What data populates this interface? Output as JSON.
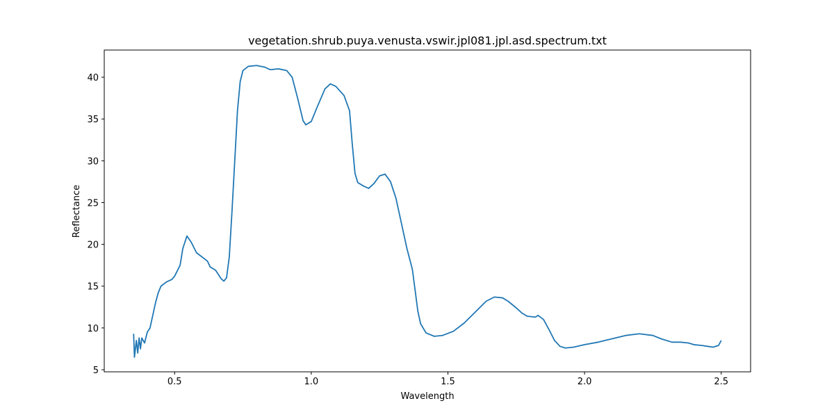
{
  "chart_data": {
    "type": "line",
    "title": "vegetation.shrub.puya.venusta.vswir.jpl081.jpl.asd.spectrum.txt",
    "x_label": "Wavelength",
    "y_label": "Reflectance",
    "color": "#1f77b4",
    "x": [
      0.35,
      0.353,
      0.36,
      0.365,
      0.37,
      0.375,
      0.38,
      0.39,
      0.4,
      0.41,
      0.42,
      0.43,
      0.44,
      0.45,
      0.47,
      0.49,
      0.5,
      0.52,
      0.53,
      0.545,
      0.56,
      0.58,
      0.6,
      0.62,
      0.63,
      0.65,
      0.67,
      0.68,
      0.69,
      0.7,
      0.71,
      0.72,
      0.73,
      0.74,
      0.75,
      0.77,
      0.8,
      0.83,
      0.85,
      0.88,
      0.91,
      0.93,
      0.95,
      0.97,
      0.98,
      1.0,
      1.02,
      1.05,
      1.07,
      1.09,
      1.12,
      1.14,
      1.15,
      1.16,
      1.17,
      1.19,
      1.21,
      1.23,
      1.25,
      1.27,
      1.29,
      1.31,
      1.33,
      1.35,
      1.37,
      1.38,
      1.39,
      1.4,
      1.42,
      1.45,
      1.48,
      1.52,
      1.56,
      1.6,
      1.64,
      1.67,
      1.7,
      1.72,
      1.75,
      1.77,
      1.79,
      1.82,
      1.83,
      1.85,
      1.87,
      1.89,
      1.91,
      1.93,
      1.96,
      2.0,
      2.05,
      2.1,
      2.15,
      2.2,
      2.25,
      2.28,
      2.32,
      2.35,
      2.38,
      2.4,
      2.43,
      2.45,
      2.47,
      2.49,
      2.5
    ],
    "values": [
      9.3,
      6.5,
      8.5,
      7.0,
      8.8,
      7.5,
      8.8,
      8.2,
      9.5,
      10.0,
      11.5,
      13.0,
      14.2,
      15.0,
      15.5,
      15.8,
      16.2,
      17.5,
      19.5,
      21.0,
      20.3,
      19.0,
      18.5,
      18.0,
      17.3,
      16.9,
      15.9,
      15.6,
      16.0,
      18.5,
      24.0,
      30.0,
      36.0,
      39.5,
      40.8,
      41.3,
      41.4,
      41.2,
      40.9,
      41.0,
      40.8,
      40.0,
      37.5,
      34.8,
      34.3,
      34.7,
      36.3,
      38.6,
      39.2,
      38.9,
      37.8,
      36.0,
      32.0,
      28.5,
      27.4,
      27.0,
      26.7,
      27.3,
      28.2,
      28.4,
      27.5,
      25.5,
      22.5,
      19.5,
      17.0,
      14.5,
      12.0,
      10.5,
      9.4,
      9.0,
      9.1,
      9.6,
      10.6,
      11.9,
      13.2,
      13.7,
      13.6,
      13.2,
      12.4,
      11.8,
      11.4,
      11.3,
      11.5,
      11.0,
      9.8,
      8.5,
      7.8,
      7.6,
      7.7,
      8.0,
      8.3,
      8.7,
      9.1,
      9.3,
      9.1,
      8.7,
      8.3,
      8.3,
      8.2,
      8.0,
      7.9,
      7.8,
      7.7,
      7.9,
      8.5
    ],
    "xlim": [
      0.2425,
      2.6075
    ],
    "xticks": [
      0.5,
      {
        "value": 1,
        "label": "1.0"
      },
      1.5,
      {
        "value": 2,
        "label": "2.0"
      },
      2.5
    ],
    "ylim": [
      4.75,
      43.25
    ],
    "yticks": [
      5,
      10,
      15,
      20,
      25,
      30,
      35,
      40
    ]
  }
}
